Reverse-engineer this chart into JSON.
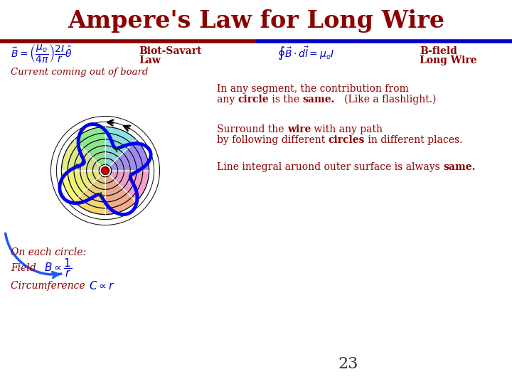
{
  "title": "Ampere's Law for Long Wire",
  "title_color": "#8B0000",
  "title_fontsize": 24,
  "bg_color": "#FFFFFF",
  "text_color": "#8B0000",
  "blue_color": "#0000CC",
  "subtitle_biot": "Biot-Savart\nLaw",
  "subtitle_bfield": "B-field\nLong Wire",
  "label_current": "Current coming out of board",
  "label_each_circle": "On each circle:",
  "label_field": "Field",
  "label_circum": "Circumference",
  "page_number": "23",
  "wire_color": "#CC0000",
  "outer_path_color": "#0000CC"
}
